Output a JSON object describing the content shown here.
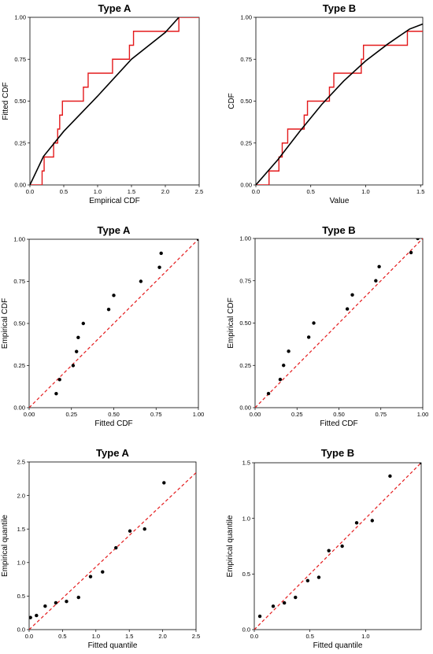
{
  "chart_data": [
    {
      "type": "line",
      "title": "Type A",
      "xlabel": "Empirical CDF",
      "ylabel": "Fitted CDF",
      "xlim": [
        0,
        2.5
      ],
      "ylim": [
        0,
        1
      ],
      "xticks": [
        "0.0",
        "0.5",
        "1.0",
        "1.5",
        "2.0",
        "2.5"
      ],
      "yticks": [
        "0.00",
        "0.25",
        "0.50",
        "0.75",
        "1.00"
      ],
      "xtick_values": [
        0,
        0.5,
        1.0,
        1.5,
        2.0,
        2.5
      ],
      "ytick_values": [
        0,
        0.25,
        0.5,
        0.75,
        1.0
      ],
      "series": [
        {
          "kind": "step",
          "color": "#e41a1c",
          "x": [
            0.18,
            0.21,
            0.35,
            0.41,
            0.44,
            0.48,
            0.79,
            0.86,
            1.22,
            1.47,
            1.53,
            2.2
          ],
          "y": [
            0.0833,
            0.1667,
            0.25,
            0.3333,
            0.4167,
            0.5,
            0.5833,
            0.6667,
            0.75,
            0.8333,
            0.9167,
            1.0
          ]
        },
        {
          "kind": "line",
          "color": "#000000",
          "x": [
            0,
            0.2,
            0.5,
            1.0,
            1.5,
            2.0,
            2.2
          ],
          "y": [
            0,
            0.17,
            0.32,
            0.53,
            0.75,
            0.91,
            1.0
          ]
        }
      ]
    },
    {
      "type": "line",
      "title": "Type B",
      "xlabel": "Value",
      "ylabel": "CDF",
      "xlim": [
        0,
        1.52
      ],
      "ylim": [
        0,
        1
      ],
      "xticks": [
        "0.0",
        "0.5",
        "1.0",
        "1.5"
      ],
      "yticks": [
        "0.00",
        "0.25",
        "0.50",
        "0.75",
        "1.00"
      ],
      "xtick_values": [
        0,
        0.5,
        1.0,
        1.5
      ],
      "ytick_values": [
        0,
        0.25,
        0.5,
        0.75,
        1.0
      ],
      "series": [
        {
          "kind": "step",
          "color": "#e41a1c",
          "x": [
            0.12,
            0.21,
            0.24,
            0.29,
            0.44,
            0.47,
            0.67,
            0.71,
            0.75,
            0.96,
            0.98,
            1.38,
            1.52
          ],
          "y": [
            0.0833,
            0.1667,
            0.25,
            0.3333,
            0.4167,
            0.5,
            0.5833,
            0.6667,
            0.6667,
            0.75,
            0.8333,
            0.9167,
            0.9167
          ]
        },
        {
          "kind": "line",
          "color": "#000000",
          "x": [
            0,
            0.2,
            0.4,
            0.6,
            0.8,
            1.0,
            1.2,
            1.4,
            1.52
          ],
          "y": [
            0,
            0.15,
            0.32,
            0.48,
            0.62,
            0.74,
            0.84,
            0.93,
            0.96
          ]
        }
      ]
    },
    {
      "type": "scatter",
      "title": "Type A",
      "xlabel": "Fitted CDF",
      "ylabel": "Empirical CDF",
      "xlim": [
        0,
        1
      ],
      "ylim": [
        0,
        1
      ],
      "xticks": [
        "0.00",
        "0.25",
        "0.50",
        "0.75",
        "1.00"
      ],
      "yticks": [
        "0.00",
        "0.25",
        "0.50",
        "0.75",
        "1.00"
      ],
      "xtick_values": [
        0,
        0.25,
        0.5,
        0.75,
        1.0
      ],
      "ytick_values": [
        0,
        0.25,
        0.5,
        0.75,
        1.0
      ],
      "reference_line": {
        "color": "#e41a1c",
        "style": "dashed",
        "from": [
          0,
          0
        ],
        "to": [
          1,
          1
        ]
      },
      "points": {
        "color": "#000000",
        "x": [
          0.16,
          0.18,
          0.26,
          0.28,
          0.29,
          0.32,
          0.47,
          0.5,
          0.66,
          0.77,
          0.78,
          1.0
        ],
        "y": [
          0.0833,
          0.1667,
          0.25,
          0.3333,
          0.4167,
          0.5,
          0.5833,
          0.6667,
          0.75,
          0.8333,
          0.9167,
          1.0
        ]
      }
    },
    {
      "type": "scatter",
      "title": "Type B",
      "xlabel": "Fitted CDF",
      "ylabel": "Empirical CDF",
      "xlim": [
        0,
        1
      ],
      "ylim": [
        0,
        1
      ],
      "xticks": [
        "0.00",
        "0.25",
        "0.50",
        "0.75",
        "1.00"
      ],
      "yticks": [
        "0.00",
        "0.25",
        "0.50",
        "0.75",
        "1.00"
      ],
      "xtick_values": [
        0,
        0.25,
        0.5,
        0.75,
        1.0
      ],
      "ytick_values": [
        0,
        0.25,
        0.5,
        0.75,
        1.0
      ],
      "reference_line": {
        "color": "#e41a1c",
        "style": "dashed",
        "from": [
          0,
          0
        ],
        "to": [
          1,
          1
        ]
      },
      "points": {
        "color": "#000000",
        "x": [
          0.08,
          0.15,
          0.17,
          0.2,
          0.32,
          0.35,
          0.55,
          0.58,
          0.72,
          0.74,
          0.93,
          0.97
        ],
        "y": [
          0.0833,
          0.1667,
          0.25,
          0.3333,
          0.4167,
          0.5,
          0.5833,
          0.6667,
          0.75,
          0.8333,
          0.9167,
          1.0
        ]
      }
    },
    {
      "type": "scatter",
      "title": "Type A",
      "xlabel": "Fitted quantile",
      "ylabel": "Empirical quantile",
      "xlim": [
        0,
        2.5
      ],
      "ylim": [
        0,
        2.5
      ],
      "xticks": [
        "0.0",
        "0.5",
        "1.0",
        "1.5",
        "2.0",
        "2.5"
      ],
      "yticks": [
        "0.0",
        "0.5",
        "1.0",
        "1.5",
        "2.0",
        "2.5"
      ],
      "xtick_values": [
        0,
        0.5,
        1.0,
        1.5,
        2.0,
        2.5
      ],
      "ytick_values": [
        0,
        0.5,
        1.0,
        1.5,
        2.0,
        2.5
      ],
      "reference_line": {
        "color": "#e41a1c",
        "style": "dashed",
        "from": [
          0,
          0
        ],
        "to": [
          2.5,
          2.34
        ]
      },
      "points": {
        "color": "#000000",
        "x": [
          0.02,
          0.11,
          0.24,
          0.4,
          0.56,
          0.74,
          0.92,
          1.1,
          1.3,
          1.51,
          1.73,
          2.02
        ],
        "y": [
          0.18,
          0.21,
          0.35,
          0.4,
          0.42,
          0.48,
          0.79,
          0.86,
          1.22,
          1.47,
          1.5,
          2.19
        ]
      }
    },
    {
      "type": "scatter",
      "title": "Type B",
      "xlabel": "Fitted quantile",
      "ylabel": "Empirical quantile",
      "xlim": [
        0,
        1.5
      ],
      "ylim": [
        0,
        1.5
      ],
      "xticks": [
        "0.0",
        "0.5",
        "1.0"
      ],
      "yticks": [
        "0.0",
        "0.5",
        "1.0",
        "1.5"
      ],
      "xtick_values": [
        0,
        0.5,
        1.0
      ],
      "ytick_values": [
        0,
        0.5,
        1.0,
        1.5
      ],
      "reference_line": {
        "color": "#e41a1c",
        "style": "dashed",
        "from": [
          0,
          0
        ],
        "to": [
          1.5,
          1.5
        ]
      },
      "points": {
        "color": "#000000",
        "x": [
          0.05,
          0.17,
          0.27,
          0.37,
          0.48,
          0.58,
          0.67,
          0.79,
          0.92,
          1.06,
          1.22,
          1.5
        ],
        "y": [
          0.12,
          0.21,
          0.24,
          0.29,
          0.44,
          0.47,
          0.71,
          0.75,
          0.96,
          0.98,
          1.38,
          1.5
        ]
      }
    }
  ]
}
